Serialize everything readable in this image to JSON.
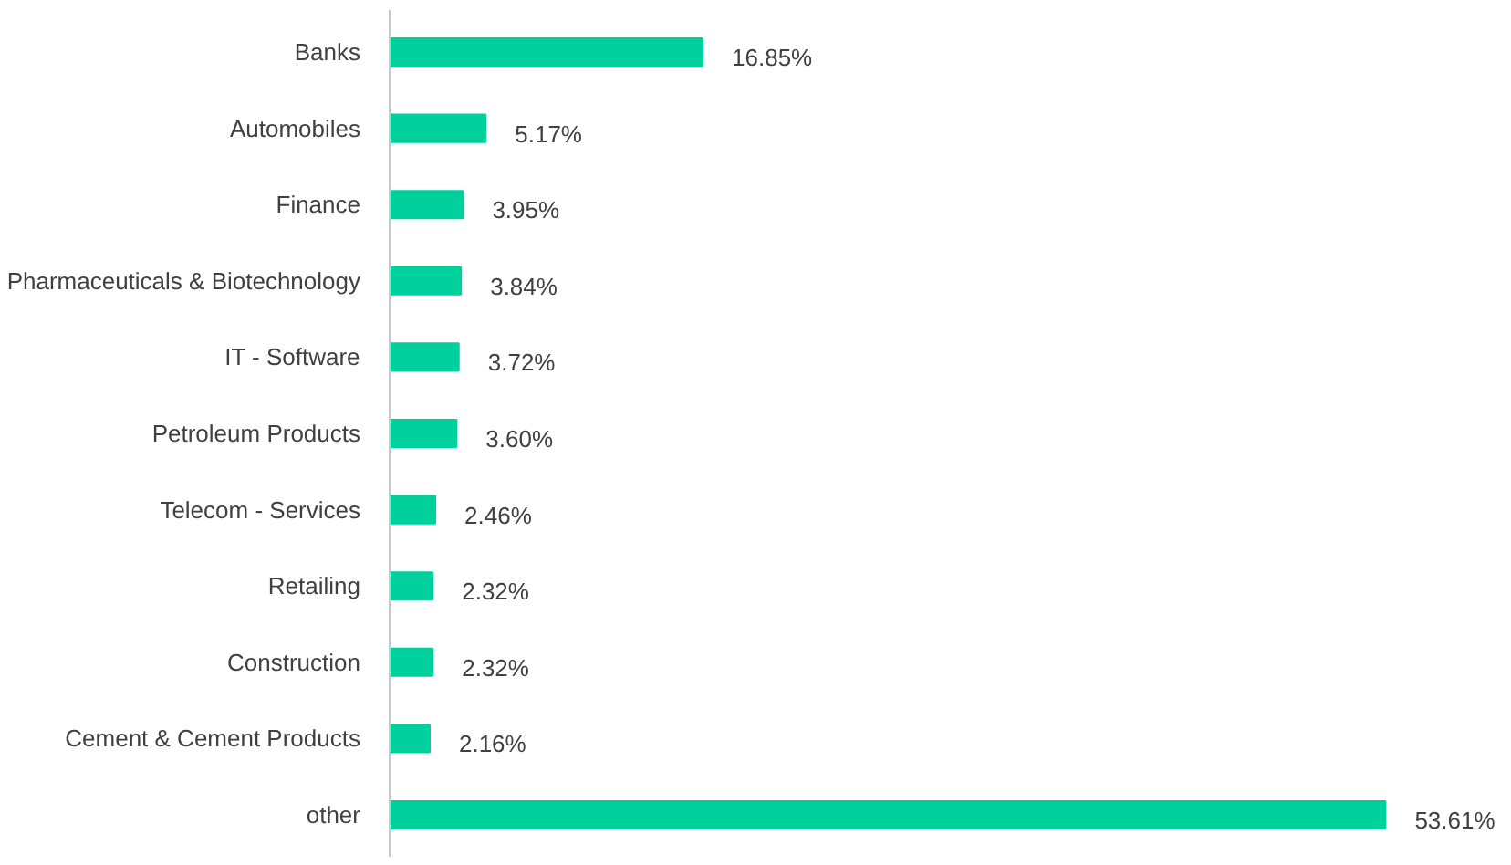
{
  "chart_data": {
    "type": "bar",
    "orientation": "horizontal",
    "categories": [
      "Banks",
      "Automobiles",
      "Finance",
      "Pharmaceuticals & Biotechnology",
      "IT - Software",
      "Petroleum Products",
      "Telecom - Services",
      "Retailing",
      "Construction",
      "Cement & Cement Products",
      "other"
    ],
    "values": [
      16.85,
      5.17,
      3.95,
      3.84,
      3.72,
      3.6,
      2.46,
      2.32,
      2.32,
      2.16,
      53.61
    ],
    "value_labels": [
      "16.85%",
      "5.17%",
      "3.95%",
      "3.84%",
      "3.72%",
      "3.60%",
      "2.46%",
      "2.32%",
      "2.32%",
      "2.16%",
      "53.61%"
    ],
    "color": "#00d09c",
    "grid": false
  }
}
